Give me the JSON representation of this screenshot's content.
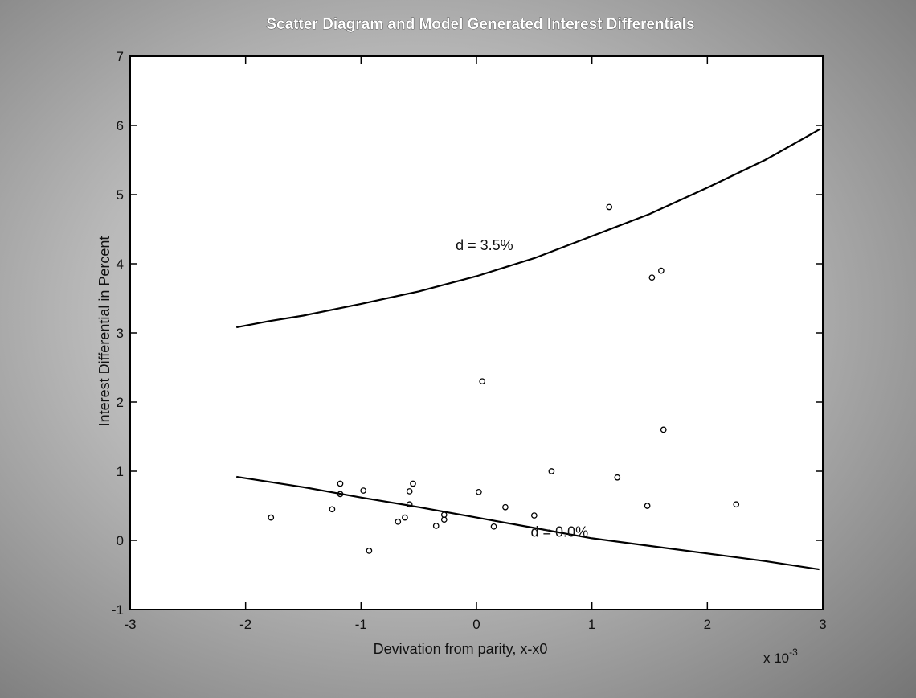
{
  "chart_data": {
    "type": "scatter",
    "title": "Scatter Diagram and Model Generated Interest Differentials",
    "xlabel": "Devivation from parity,  x-x0",
    "ylabel": "Interest Differential in Percent",
    "x_multiplier_label": "x 10",
    "x_multiplier_exponent": "-3",
    "xlim": [
      -3,
      3
    ],
    "ylim": [
      -1,
      7
    ],
    "xticks": [
      "-3",
      "-2",
      "-1",
      "0",
      "1",
      "2",
      "3"
    ],
    "yticks": [
      "-1",
      "0",
      "1",
      "2",
      "3",
      "4",
      "5",
      "6",
      "7"
    ],
    "grid": false,
    "series": [
      {
        "kind": "points",
        "marker": "circle",
        "points": [
          [
            -1.78,
            0.33
          ],
          [
            -1.25,
            0.45
          ],
          [
            -1.18,
            0.82
          ],
          [
            -1.18,
            0.67
          ],
          [
            -0.98,
            0.72
          ],
          [
            -0.93,
            -0.15
          ],
          [
            -0.68,
            0.27
          ],
          [
            -0.62,
            0.33
          ],
          [
            -0.58,
            0.52
          ],
          [
            -0.58,
            0.71
          ],
          [
            -0.55,
            0.82
          ],
          [
            -0.35,
            0.21
          ],
          [
            -0.28,
            0.3
          ],
          [
            -0.28,
            0.37
          ],
          [
            0.02,
            0.7
          ],
          [
            0.05,
            2.3
          ],
          [
            0.15,
            0.2
          ],
          [
            0.25,
            0.48
          ],
          [
            0.5,
            0.36
          ],
          [
            0.65,
            1.0
          ],
          [
            1.15,
            4.82
          ],
          [
            1.22,
            0.91
          ],
          [
            1.48,
            0.5
          ],
          [
            1.52,
            3.8
          ],
          [
            1.6,
            3.9
          ],
          [
            1.62,
            1.6
          ],
          [
            2.25,
            0.52
          ]
        ]
      },
      {
        "kind": "curve",
        "label": "d = 3.5%",
        "label_at": [
          -0.18,
          4.2
        ],
        "points": [
          [
            -2.08,
            3.08
          ],
          [
            -1.8,
            3.17
          ],
          [
            -1.5,
            3.25
          ],
          [
            -1.0,
            3.42
          ],
          [
            -0.5,
            3.6
          ],
          [
            0.0,
            3.82
          ],
          [
            0.5,
            4.08
          ],
          [
            1.0,
            4.4
          ],
          [
            1.5,
            4.72
          ],
          [
            2.0,
            5.1
          ],
          [
            2.5,
            5.5
          ],
          [
            2.98,
            5.95
          ]
        ]
      },
      {
        "kind": "curve",
        "label": "d = 0.0%",
        "label_at": [
          0.47,
          0.05
        ],
        "points": [
          [
            -2.08,
            0.92
          ],
          [
            -1.5,
            0.77
          ],
          [
            -1.0,
            0.62
          ],
          [
            -0.5,
            0.48
          ],
          [
            0.0,
            0.33
          ],
          [
            0.5,
            0.18
          ],
          [
            1.0,
            0.03
          ],
          [
            1.5,
            -0.08
          ],
          [
            2.0,
            -0.19
          ],
          [
            2.5,
            -0.3
          ],
          [
            2.97,
            -0.42
          ]
        ]
      }
    ]
  }
}
